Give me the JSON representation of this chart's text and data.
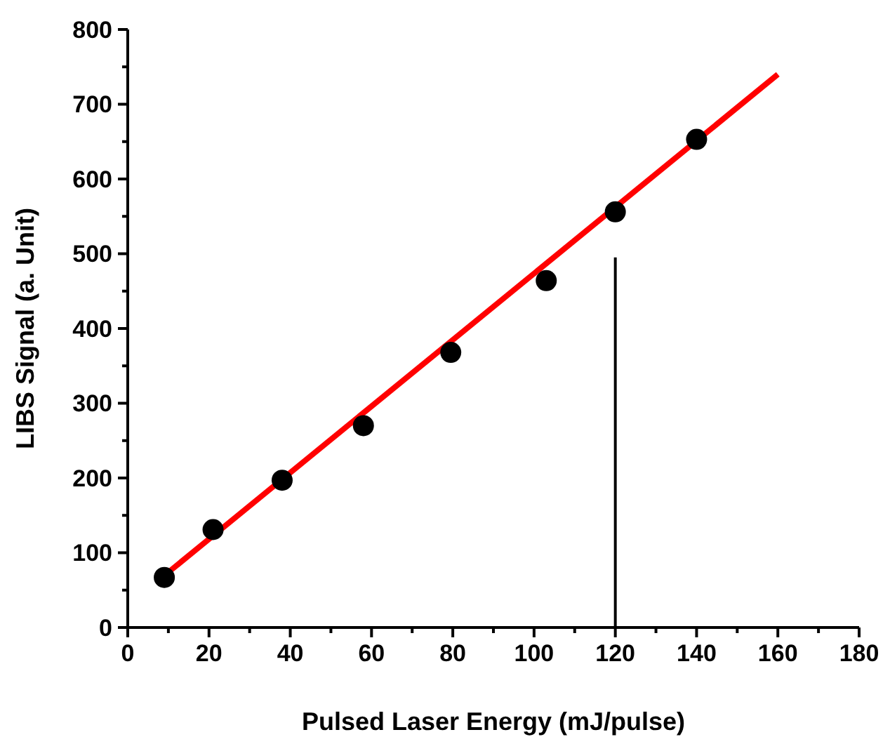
{
  "chart_data": {
    "type": "scatter",
    "xlabel": "Pulsed Laser Energy (mJ/pulse)",
    "ylabel": "LIBS Signal (a. Unit)",
    "xlim": [
      0,
      180
    ],
    "ylim": [
      0,
      800
    ],
    "xticks": [
      0,
      {
        "value": 10,
        "label": null
      },
      20,
      {
        "value": 30,
        "label": null
      },
      40,
      {
        "value": 50,
        "label": null
      },
      60,
      {
        "value": 70,
        "label": null
      },
      80,
      {
        "value": 90,
        "label": null
      },
      100,
      {
        "value": 110,
        "label": null
      },
      120,
      {
        "value": 130,
        "label": null
      },
      140,
      {
        "value": 150,
        "label": null
      },
      160,
      {
        "value": 170,
        "label": null
      },
      180
    ],
    "yticks": [
      0,
      {
        "value": 50,
        "label": null
      },
      100,
      {
        "value": 150,
        "label": null
      },
      200,
      {
        "value": 250,
        "label": null
      },
      300,
      {
        "value": 350,
        "label": null
      },
      400,
      {
        "value": 450,
        "label": null
      },
      500,
      {
        "value": 550,
        "label": null
      },
      600,
      {
        "value": 650,
        "label": null
      },
      700,
      {
        "value": 750,
        "label": null
      },
      800
    ],
    "grid": false,
    "marker": "circle",
    "series": [
      {
        "color": "#000000",
        "x": [
          9,
          21,
          38,
          58,
          79.5,
          103,
          120,
          140
        ],
        "values": [
          67,
          131,
          197,
          270,
          368,
          464,
          556,
          653
        ]
      },
      {
        "type": "line",
        "color": "#ff0000",
        "x": [
          8,
          160
        ],
        "values": [
          65,
          740
        ],
        "marker": "none",
        "line_style": "solid"
      },
      {
        "type": "line",
        "color": "#000000",
        "x": [
          120,
          120
        ],
        "values": [
          0,
          495
        ],
        "marker": "none",
        "line_style": "solid"
      }
    ]
  }
}
